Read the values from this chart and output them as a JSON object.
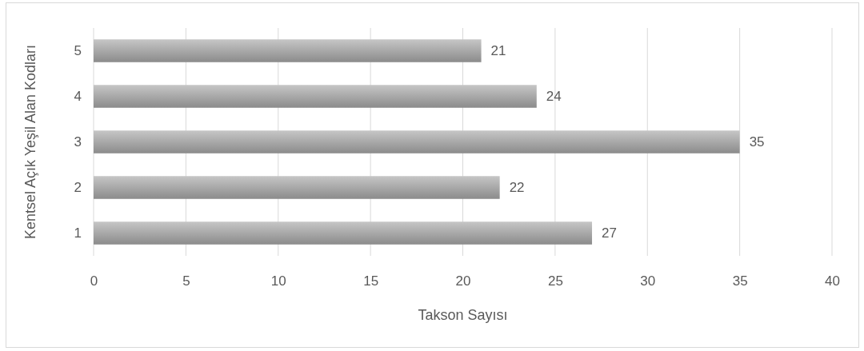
{
  "chart_data": {
    "type": "bar",
    "orientation": "horizontal",
    "xlabel": "Takson Sayısı",
    "ylabel": "Kentsel Açık Yeşil Alan Kodları",
    "categories": [
      "5",
      "4",
      "3",
      "2",
      "1"
    ],
    "values": [
      21,
      24,
      35,
      22,
      27
    ],
    "color": "#a6a6a6",
    "xlim": [
      0,
      40
    ],
    "xticks": [
      0,
      5,
      10,
      15,
      20,
      25,
      30,
      35,
      40
    ],
    "grid": "x",
    "data_labels": true
  }
}
